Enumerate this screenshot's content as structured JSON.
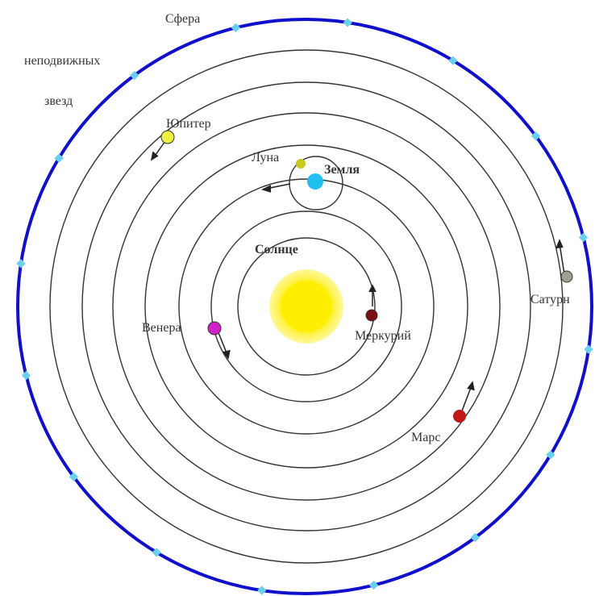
{
  "sphere_label": [
    "Сфера",
    "неподвижных",
    "звезд"
  ],
  "bodies": [
    {
      "label": "Солнце"
    },
    {
      "label": "Меркурий"
    },
    {
      "label": "Венера"
    },
    {
      "label": "Земля"
    },
    {
      "label": "Луна"
    },
    {
      "label": "Марс"
    },
    {
      "label": "Юпитер"
    },
    {
      "label": "Сатурн"
    }
  ]
}
